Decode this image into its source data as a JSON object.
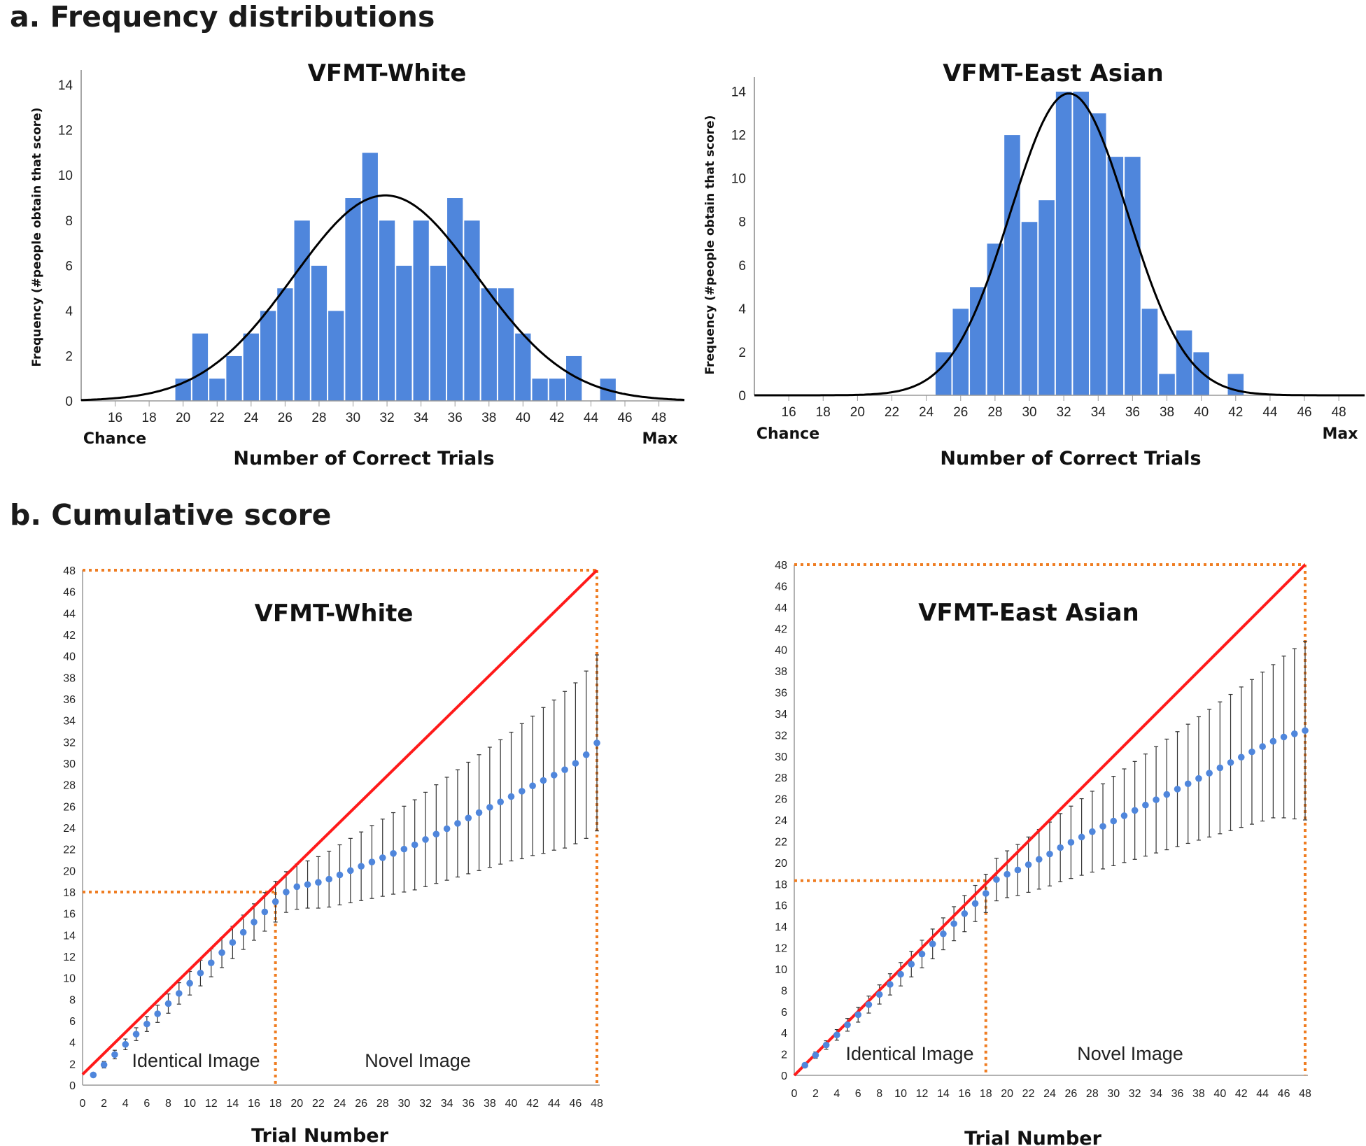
{
  "section_a_title": "a. Frequency distributions",
  "section_b_title": "b. Cumulative score",
  "chart_data": [
    {
      "type": "bar",
      "title": "VFMT-White",
      "xlabel": "Number of Correct Trials",
      "ylabel": "Frequency (#people obtain that score)",
      "x_end_labels": [
        "Chance",
        "Max"
      ],
      "x": [
        20,
        21,
        22,
        23,
        24,
        25,
        26,
        27,
        28,
        29,
        30,
        31,
        32,
        33,
        34,
        35,
        36,
        37,
        38,
        39,
        40,
        41,
        42,
        43,
        44,
        45
      ],
      "values": [
        1,
        3,
        1,
        2,
        3,
        4,
        5,
        8,
        6,
        4,
        9,
        11,
        8,
        6,
        8,
        6,
        9,
        8,
        5,
        5,
        3,
        1,
        1,
        2,
        0,
        1
      ],
      "xticks": [
        16,
        18,
        20,
        22,
        24,
        26,
        28,
        30,
        32,
        34,
        36,
        38,
        40,
        42,
        44,
        46,
        48
      ],
      "yticks": [
        0,
        2,
        4,
        6,
        8,
        10,
        12,
        14
      ],
      "xlim": [
        14,
        49.5
      ],
      "ylim": [
        0,
        14.5
      ],
      "normal_curve": {
        "mean": 31.9,
        "sd": 5.4,
        "peak": 9.1
      },
      "bar_color": "#4f86dc"
    },
    {
      "type": "bar",
      "title": "VFMT-East Asian",
      "xlabel": "Number of Correct Trials",
      "ylabel": "Frequency (#people obtain that score)",
      "x_end_labels": [
        "Chance",
        "Max"
      ],
      "x": [
        25,
        26,
        27,
        28,
        29,
        30,
        31,
        32,
        33,
        34,
        35,
        36,
        37,
        38,
        39,
        40,
        41,
        42
      ],
      "values": [
        2,
        4,
        5,
        7,
        12,
        8,
        9,
        14,
        14,
        13,
        11,
        11,
        4,
        1,
        3,
        2,
        0,
        1
      ],
      "xticks": [
        16,
        18,
        20,
        22,
        24,
        26,
        28,
        30,
        32,
        34,
        36,
        38,
        40,
        42,
        44,
        46,
        48
      ],
      "yticks": [
        0,
        2,
        4,
        6,
        8,
        10,
        12,
        14
      ],
      "xlim": [
        14,
        49.5
      ],
      "ylim": [
        0,
        14.5
      ],
      "normal_curve": {
        "mean": 32.3,
        "sd": 3.4,
        "peak": 13.9
      },
      "bar_color": "#4f86dc"
    },
    {
      "type": "line",
      "title": "VFMT-White",
      "xlabel": "Trial Number",
      "ylabel": "",
      "region_labels": [
        "Identical Image",
        "Novel Image"
      ],
      "x": [
        1,
        2,
        3,
        4,
        5,
        6,
        7,
        8,
        9,
        10,
        11,
        12,
        13,
        14,
        15,
        16,
        17,
        18,
        19,
        20,
        21,
        22,
        23,
        24,
        25,
        26,
        27,
        28,
        29,
        30,
        31,
        32,
        33,
        34,
        35,
        36,
        37,
        38,
        39,
        40,
        41,
        42,
        43,
        44,
        45,
        46,
        47,
        48
      ],
      "series": [
        {
          "type": "scatter",
          "values": [
            0.95,
            1.9,
            2.85,
            3.8,
            4.75,
            5.7,
            6.65,
            7.6,
            8.55,
            9.5,
            10.45,
            11.4,
            12.35,
            13.3,
            14.25,
            15.2,
            16.15,
            17.1,
            18.0,
            18.5,
            18.7,
            18.9,
            19.2,
            19.6,
            20.0,
            20.4,
            20.8,
            21.2,
            21.6,
            22.0,
            22.4,
            22.9,
            23.4,
            23.9,
            24.4,
            24.9,
            25.4,
            25.9,
            26.4,
            26.9,
            27.4,
            27.9,
            28.4,
            28.9,
            29.4,
            30.0,
            30.8,
            31.9
          ],
          "errors": [
            0.2,
            0.3,
            0.4,
            0.5,
            0.6,
            0.7,
            0.8,
            0.9,
            1.0,
            1.1,
            1.2,
            1.3,
            1.4,
            1.5,
            1.6,
            1.7,
            1.8,
            1.9,
            1.9,
            2.1,
            2.2,
            2.4,
            2.6,
            2.8,
            3.0,
            3.2,
            3.4,
            3.6,
            3.8,
            4.0,
            4.2,
            4.4,
            4.6,
            4.8,
            5.0,
            5.2,
            5.4,
            5.6,
            5.8,
            6.0,
            6.3,
            6.5,
            6.8,
            7.0,
            7.3,
            7.5,
            7.8,
            8.2
          ],
          "color": "#4f86dc"
        },
        {
          "type": "line",
          "values": [
            1,
            48
          ],
          "x": [
            0,
            48
          ],
          "color": "#ff1a1a"
        }
      ],
      "reference_lines": {
        "x": [
          18,
          48
        ],
        "y": [
          18,
          48
        ],
        "color": "#ef7d22"
      },
      "xticks": [
        0,
        2,
        4,
        6,
        8,
        10,
        12,
        14,
        16,
        18,
        20,
        22,
        24,
        26,
        28,
        30,
        32,
        34,
        36,
        38,
        40,
        42,
        44,
        46,
        48
      ],
      "yticks": [
        0,
        2,
        4,
        6,
        8,
        10,
        12,
        14,
        16,
        18,
        20,
        22,
        24,
        26,
        28,
        30,
        32,
        34,
        36,
        38,
        40,
        42,
        44,
        46,
        48
      ],
      "xlim": [
        0,
        48
      ],
      "ylim": [
        0,
        48
      ]
    },
    {
      "type": "line",
      "title": "VFMT-East Asian",
      "xlabel": "Trial Number",
      "ylabel": "",
      "region_labels": [
        "Identical Image",
        "Novel Image"
      ],
      "x": [
        1,
        2,
        3,
        4,
        5,
        6,
        7,
        8,
        9,
        10,
        11,
        12,
        13,
        14,
        15,
        16,
        17,
        18,
        19,
        20,
        21,
        22,
        23,
        24,
        25,
        26,
        27,
        28,
        29,
        30,
        31,
        32,
        33,
        34,
        35,
        36,
        37,
        38,
        39,
        40,
        41,
        42,
        43,
        44,
        45,
        46,
        47,
        48
      ],
      "series": [
        {
          "type": "scatter",
          "values": [
            0.95,
            1.9,
            2.85,
            3.8,
            4.75,
            5.7,
            6.65,
            7.6,
            8.55,
            9.5,
            10.45,
            11.4,
            12.35,
            13.3,
            14.25,
            15.2,
            16.15,
            17.1,
            18.4,
            18.9,
            19.3,
            19.8,
            20.3,
            20.8,
            21.4,
            21.9,
            22.4,
            22.9,
            23.4,
            23.9,
            24.4,
            24.9,
            25.4,
            25.9,
            26.4,
            26.9,
            27.4,
            27.9,
            28.4,
            28.9,
            29.4,
            29.9,
            30.4,
            30.9,
            31.4,
            31.8,
            32.1,
            32.4
          ],
          "errors": [
            0.2,
            0.3,
            0.4,
            0.5,
            0.6,
            0.7,
            0.8,
            0.9,
            1.0,
            1.1,
            1.2,
            1.3,
            1.4,
            1.5,
            1.6,
            1.7,
            1.7,
            1.8,
            2.0,
            2.2,
            2.4,
            2.6,
            2.8,
            3.0,
            3.2,
            3.4,
            3.6,
            3.8,
            4.0,
            4.2,
            4.4,
            4.6,
            4.8,
            5.0,
            5.2,
            5.4,
            5.6,
            5.8,
            6.0,
            6.2,
            6.4,
            6.6,
            6.8,
            7.0,
            7.2,
            7.6,
            8.0,
            8.4
          ],
          "color": "#4f86dc"
        },
        {
          "type": "line",
          "values": [
            0,
            48
          ],
          "x": [
            0,
            48
          ],
          "color": "#ff1a1a"
        }
      ],
      "reference_lines": {
        "x": [
          18,
          48
        ],
        "y": [
          18.3,
          48
        ],
        "color": "#ef7d22"
      },
      "xticks": [
        0,
        2,
        4,
        6,
        8,
        10,
        12,
        14,
        16,
        18,
        20,
        22,
        24,
        26,
        28,
        30,
        32,
        34,
        36,
        38,
        40,
        42,
        44,
        46,
        48
      ],
      "yticks": [
        0,
        2,
        4,
        6,
        8,
        10,
        12,
        14,
        16,
        18,
        20,
        22,
        24,
        26,
        28,
        30,
        32,
        34,
        36,
        38,
        40,
        42,
        44,
        46,
        48
      ],
      "xlim": [
        0,
        48
      ],
      "ylim": [
        0,
        48
      ]
    }
  ]
}
